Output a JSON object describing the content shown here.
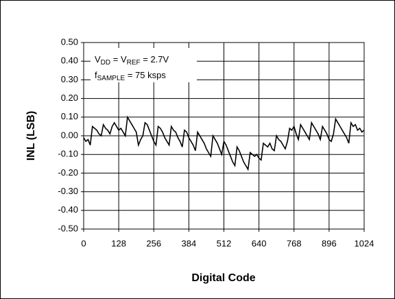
{
  "chart_data": {
    "type": "line",
    "xlabel": "Digital Code",
    "ylabel": "INL (LSB)",
    "annotations": [
      [
        "V",
        "DD",
        " = V",
        "REF",
        " = 2.7V"
      ],
      [
        "f",
        "SAMPLE",
        " = 75 ksps"
      ]
    ],
    "color": "#000000",
    "grid": true,
    "xlim": [
      0,
      1024
    ],
    "xticks": [
      0,
      128,
      256,
      384,
      512,
      640,
      768,
      896,
      1024
    ],
    "ylim": [
      -0.5,
      0.5
    ],
    "yticks": [
      {
        "value": 0.5,
        "label": "0.50"
      },
      {
        "value": 0.4,
        "label": "0.40"
      },
      {
        "value": 0.3,
        "label": "0.30"
      },
      {
        "value": 0.2,
        "label": "0.20"
      },
      {
        "value": 0.1,
        "label": "0.10"
      },
      {
        "value": 0,
        "label": "0.00"
      },
      {
        "value": -0.1,
        "label": "-0.10"
      },
      {
        "value": -0.2,
        "label": "-0.20"
      },
      {
        "value": -0.3,
        "label": "-0.30"
      },
      {
        "value": -0.4,
        "label": "-0.40"
      },
      {
        "value": -0.5,
        "label": "-0.50"
      }
    ],
    "x": [
      0,
      8,
      16,
      24,
      32,
      40,
      48,
      56,
      64,
      72,
      80,
      88,
      96,
      104,
      112,
      120,
      128,
      136,
      144,
      152,
      160,
      168,
      176,
      184,
      192,
      200,
      208,
      216,
      224,
      232,
      240,
      248,
      256,
      264,
      272,
      280,
      288,
      296,
      304,
      312,
      320,
      328,
      336,
      344,
      352,
      360,
      368,
      376,
      384,
      392,
      400,
      408,
      416,
      424,
      432,
      440,
      448,
      456,
      464,
      472,
      480,
      488,
      496,
      504,
      512,
      520,
      528,
      536,
      544,
      552,
      560,
      568,
      576,
      584,
      592,
      600,
      608,
      616,
      624,
      632,
      640,
      648,
      656,
      664,
      672,
      680,
      688,
      696,
      704,
      712,
      720,
      728,
      736,
      744,
      752,
      760,
      768,
      776,
      784,
      792,
      800,
      808,
      816,
      824,
      832,
      840,
      848,
      856,
      864,
      872,
      880,
      888,
      896,
      904,
      912,
      920,
      928,
      936,
      944,
      952,
      960,
      968,
      976,
      984,
      992,
      1000,
      1008,
      1016,
      1024
    ],
    "values": [
      -0.01,
      -0.03,
      -0.02,
      -0.05,
      0.05,
      0.04,
      0.03,
      0.01,
      0.0,
      0.06,
      0.04,
      0.03,
      0.01,
      0.05,
      0.07,
      0.05,
      0.03,
      0.04,
      0.02,
      0.0,
      0.1,
      0.08,
      0.06,
      0.04,
      0.02,
      -0.05,
      -0.02,
      0.0,
      0.07,
      0.06,
      0.03,
      0.0,
      -0.03,
      -0.05,
      0.05,
      0.04,
      0.02,
      -0.01,
      -0.03,
      -0.05,
      0.05,
      0.03,
      0.02,
      -0.01,
      -0.03,
      -0.06,
      0.03,
      0.02,
      -0.01,
      -0.03,
      -0.05,
      -0.08,
      0.02,
      0.0,
      -0.02,
      -0.04,
      -0.07,
      -0.09,
      -0.11,
      0.0,
      -0.02,
      -0.04,
      -0.07,
      -0.1,
      -0.03,
      -0.05,
      -0.08,
      -0.11,
      -0.14,
      -0.16,
      -0.06,
      -0.08,
      -0.11,
      -0.14,
      -0.16,
      -0.18,
      -0.09,
      -0.1,
      -0.11,
      -0.1,
      -0.12,
      -0.13,
      -0.04,
      -0.05,
      -0.06,
      -0.04,
      -0.07,
      -0.08,
      0.0,
      -0.02,
      -0.03,
      -0.05,
      -0.07,
      -0.03,
      0.04,
      0.03,
      0.05,
      0.01,
      -0.02,
      0.06,
      0.04,
      0.02,
      0.0,
      -0.02,
      0.07,
      0.05,
      0.03,
      0.01,
      -0.02,
      0.05,
      0.03,
      0.01,
      -0.02,
      -0.03,
      0.01,
      0.09,
      0.07,
      0.05,
      0.03,
      0.01,
      -0.01,
      -0.04,
      0.07,
      0.05,
      0.06,
      0.03,
      0.04,
      0.02,
      0.03
    ]
  }
}
